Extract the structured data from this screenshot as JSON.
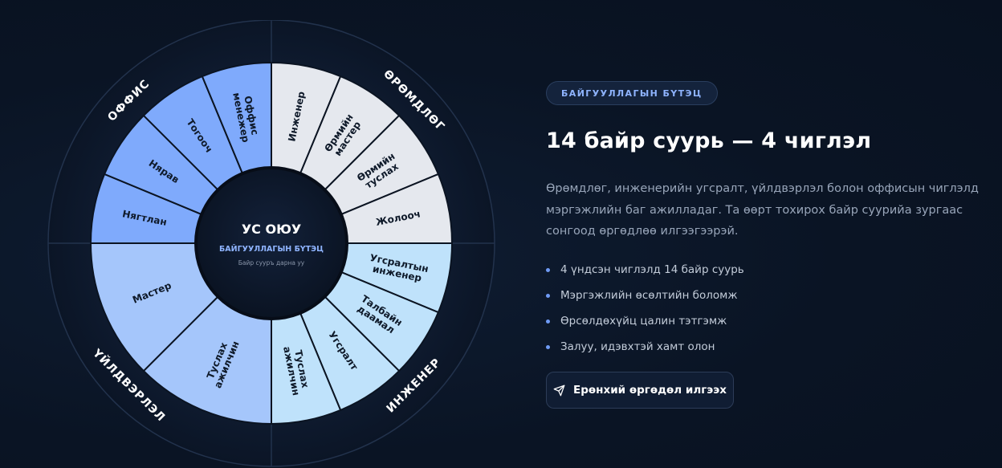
{
  "wheel": {
    "center": {
      "brand": "УС ОЮУ",
      "title": "БАЙГУУЛЛАГЫН БҮТЭЦ",
      "subtitle": "Байр сууръ дарна уу"
    },
    "categories": [
      {
        "name": "ӨРӨМДЛӨГ",
        "color": "#e5e8ee",
        "positions": [
          [
            "Инженер"
          ],
          [
            "Өрмийн",
            "мастер"
          ],
          [
            "Өрмийн",
            "туслах"
          ],
          [
            "Жолооч"
          ]
        ]
      },
      {
        "name": "ИНЖЕНЕР",
        "color": "#bfe2fb",
        "positions": [
          [
            "Угсралтын",
            "инженер"
          ],
          [
            "Талбайн",
            "даамал"
          ],
          [
            "Угсралт"
          ],
          [
            "Туслах",
            "ажилчин"
          ]
        ]
      },
      {
        "name": "ҮЙЛДВЭРЛЭЛ",
        "color": "#a5c6fb",
        "positions": [
          [
            "Туслах",
            "ажилчин"
          ],
          [
            "Мастер"
          ]
        ]
      },
      {
        "name": "ОФФИС",
        "color": "#7faafc",
        "positions": [
          [
            "Нягтлан"
          ],
          [
            "Нярав"
          ],
          [
            "Тогооч"
          ],
          [
            "Оффис",
            "менежер"
          ]
        ]
      }
    ]
  },
  "content": {
    "badge": "БАЙГУУЛЛАГЫН БҮТЭЦ",
    "title": "14 байр суурь — 4 чиглэл",
    "description": "Өрөмдлөг, инженерийн угсралт, үйлдвэрлэл болон оффисын чиглэлд мэргэжлийн баг ажилладаг. Та өөрт тохирох байр суурийа зургаас сонгоод өргөдлөө илгээгээрэй.",
    "features": [
      "4 үндсэн чиглэлд 14 байр суурь",
      "Мэргэжлийн өсөлтийн боломж",
      "Өрсөлдөхүйц цалин тэтгэмж",
      "Залуу, идэвхтэй хамт олон"
    ],
    "cta_label": "Ерөнхий өргөдөл илгээх",
    "cta_icon": "send-icon"
  }
}
